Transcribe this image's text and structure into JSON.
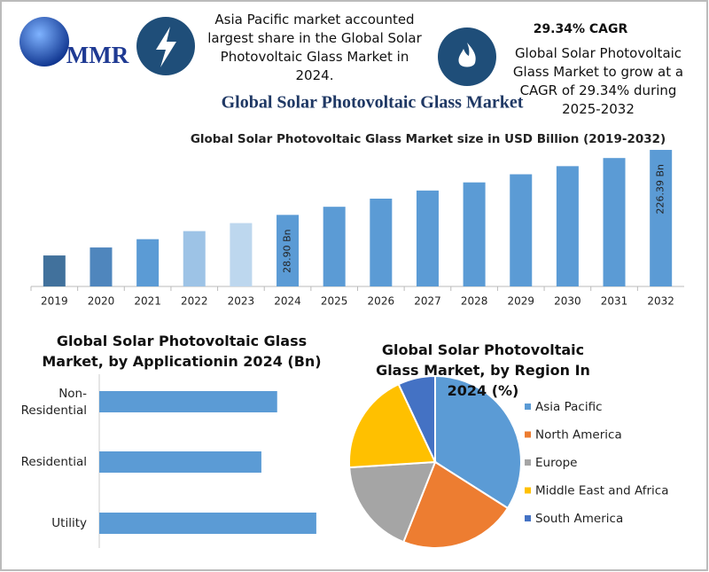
{
  "header": {
    "logo": "MMR",
    "note_left": "Asia Pacific market accounted largest share in the Global Solar Photovoltaic Glass Market in 2024.",
    "note_right_title": "29.34% CAGR",
    "note_right": "Global Solar Photovoltaic Glass Market to grow at a CAGR of 29.34% during 2025-2032"
  },
  "title": "Global Solar Photovoltaic Glass Market",
  "chart_data": [
    {
      "type": "bar",
      "title": "Global Solar Photovoltaic Glass Market size in USD Billion (2019-2032)",
      "categories": [
        "2019",
        "2020",
        "2021",
        "2022",
        "2023",
        "2024",
        "2025",
        "2026",
        "2027",
        "2028",
        "2029",
        "2030",
        "2031",
        "2032"
      ],
      "values": [
        8.0,
        10.3,
        13.4,
        17.3,
        22.3,
        28.9,
        37.38,
        48.35,
        62.53,
        80.88,
        104.6,
        135.3,
        175.0,
        226.39
      ],
      "value_labels": [
        null,
        null,
        null,
        null,
        null,
        "28.90 Bn",
        null,
        null,
        null,
        null,
        null,
        null,
        null,
        "226.39 Bn"
      ],
      "colors": [
        "#41719c",
        "#4f86bd",
        "#5b9bd5",
        "#9dc3e6",
        "#bdd7ee",
        "#5b9bd5",
        "#5b9bd5",
        "#5b9bd5",
        "#5b9bd5",
        "#5b9bd5",
        "#5b9bd5",
        "#5b9bd5",
        "#5b9bd5",
        "#5b9bd5"
      ],
      "log_scale": true,
      "ylim": [
        3,
        300
      ]
    },
    {
      "type": "hbar",
      "title": "Global Solar Photovoltaic Glass Market, by Applicationin 2024 (Bn)",
      "categories": [
        "Non-Residential",
        "Residential",
        "Utility"
      ],
      "values": [
        9.23,
        8.41,
        11.26
      ],
      "color": "#5b9bd5",
      "xlim": [
        0,
        12
      ]
    },
    {
      "type": "pie",
      "title": "Global Solar Photovoltaic Glass Market, by Region In 2024 (%)",
      "categories": [
        "Asia Pacific",
        "North America",
        "Europe",
        "Middle East and Africa",
        "South America"
      ],
      "values": [
        34,
        22,
        18,
        19,
        7
      ],
      "colors": [
        "#5b9bd5",
        "#ed7d31",
        "#a5a5a5",
        "#ffc000",
        "#4472c4"
      ],
      "legend": "right"
    }
  ]
}
